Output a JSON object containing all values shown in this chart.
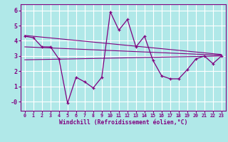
{
  "x": [
    0,
    1,
    2,
    3,
    4,
    5,
    6,
    7,
    8,
    9,
    10,
    11,
    12,
    13,
    14,
    15,
    16,
    17,
    18,
    19,
    20,
    21,
    22,
    23
  ],
  "windchill": [
    4.3,
    4.2,
    3.6,
    3.6,
    2.8,
    -0.1,
    1.6,
    1.3,
    0.9,
    1.6,
    5.9,
    4.7,
    5.4,
    3.6,
    4.3,
    2.7,
    1.7,
    1.5,
    1.5,
    2.1,
    2.8,
    3.0,
    2.5,
    3.0
  ],
  "trend1": [
    4.35,
    3.1
  ],
  "trend2": [
    3.6,
    3.05
  ],
  "trend3": [
    2.75,
    3.0
  ],
  "line_color": "#800080",
  "bg_color": "#b0e8e8",
  "grid_color": "#ffffff",
  "xlabel": "Windchill (Refroidissement éolien,°C)",
  "ylim": [
    -0.6,
    6.4
  ],
  "xlim": [
    -0.5,
    23.5
  ],
  "yticks": [
    0,
    1,
    2,
    3,
    4,
    5,
    6
  ],
  "ytick_labels": [
    "-0",
    "1",
    "2",
    "3",
    "4",
    "5",
    "6"
  ]
}
